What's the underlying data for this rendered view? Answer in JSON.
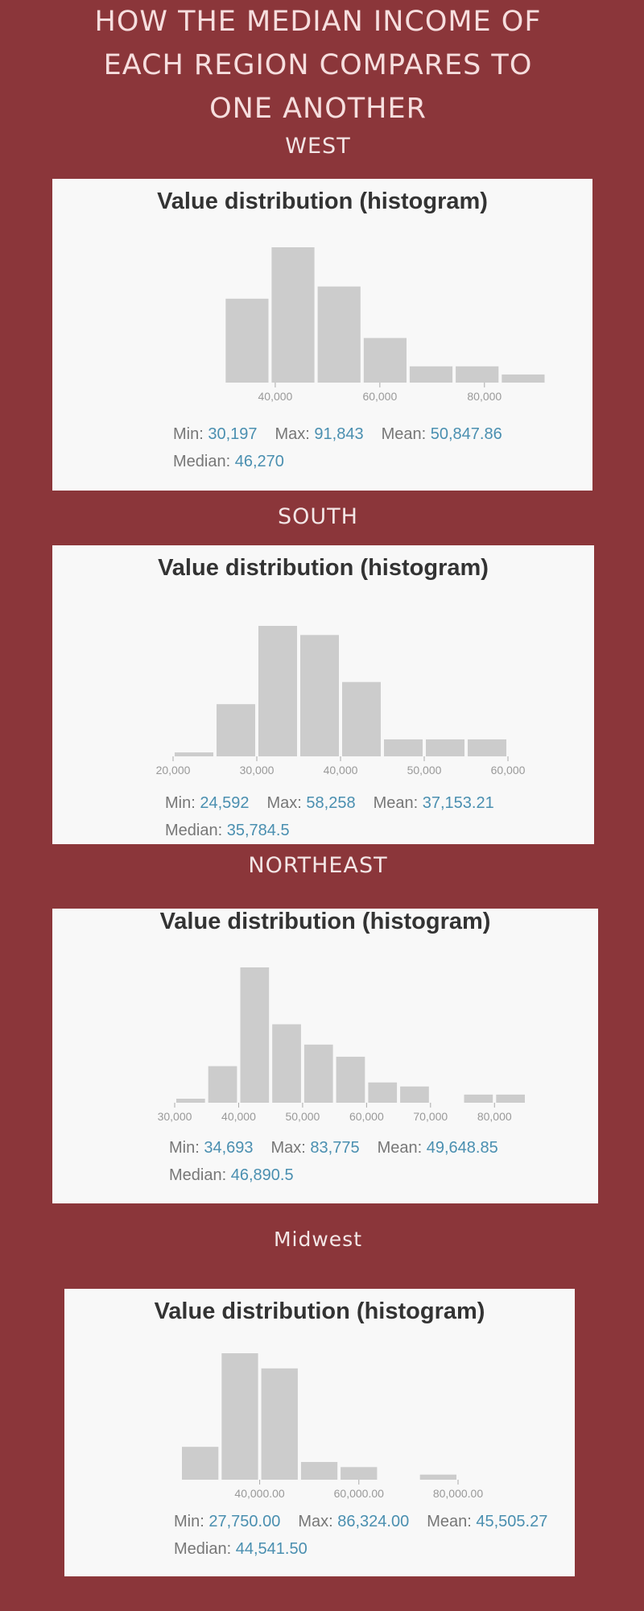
{
  "page_title_lines": [
    "HOW THE MEDIAN INCOME OF",
    "EACH REGION COMPARES TO",
    "ONE ANOTHER"
  ],
  "colors": {
    "background": "#8b363a",
    "card": "#f8f8f8",
    "bar": "#cccccc",
    "value": "#4a8fb0",
    "label": "#777777"
  },
  "stat_labels": {
    "min": "Min:",
    "max": "Max:",
    "mean": "Mean:",
    "median": "Median:"
  },
  "chart_data": [
    {
      "region": "WEST",
      "type": "bar",
      "title": "Value distribution (histogram)",
      "bin_start": 30197,
      "bin_width": 8800,
      "values": [
        0.62,
        1.0,
        0.71,
        0.33,
        0.12,
        0.12,
        0.06
      ],
      "xticks": [
        40000,
        60000,
        80000
      ],
      "xtick_labels": [
        "40,000",
        "60,000",
        "80,000"
      ],
      "stats": {
        "min": "30,197",
        "max": "91,843",
        "mean": "50,847.86",
        "median": "46,270"
      }
    },
    {
      "region": "SOUTH",
      "type": "bar",
      "title": "Value distribution (histogram)",
      "bin_start": 20000,
      "bin_width": 5000,
      "values": [
        0.03,
        0.4,
        1.0,
        0.93,
        0.57,
        0.13,
        0.13,
        0.13
      ],
      "xticks": [
        20000,
        30000,
        40000,
        50000,
        60000
      ],
      "xtick_labels": [
        "20,000",
        "30,000",
        "40,000",
        "50,000",
        "60,000"
      ],
      "stats": {
        "min": "24,592",
        "max": "58,258",
        "mean": "37,153.21",
        "median": "35,784.5"
      }
    },
    {
      "region": "NORTHEAST",
      "type": "bar",
      "title": "Value distribution (histogram)",
      "bin_start": 30000,
      "bin_width": 5000,
      "values": [
        0.03,
        0.27,
        1.0,
        0.58,
        0.43,
        0.34,
        0.15,
        0.12,
        0.0,
        0.06,
        0.06
      ],
      "xticks": [
        30000,
        40000,
        50000,
        60000,
        70000,
        80000
      ],
      "xtick_labels": [
        "30,000",
        "40,000",
        "50,000",
        "60,000",
        "70,000",
        "80,000"
      ],
      "stats": {
        "min": "34,693",
        "max": "83,775",
        "mean": "49,648.85",
        "median": "46,890.5"
      }
    },
    {
      "region": "Midwest",
      "type": "bar",
      "title": "Value distribution (histogram)",
      "bin_start": 24000,
      "bin_width": 8000,
      "values": [
        0.26,
        1.0,
        0.88,
        0.14,
        0.1,
        0.0,
        0.04
      ],
      "xticks": [
        40000,
        60000,
        80000
      ],
      "xtick_labels": [
        "40,000.00",
        "60,000.00",
        "80,000.00"
      ],
      "stats": {
        "min": "27,750.00",
        "max": "86,324.00",
        "mean": "45,505.27",
        "median": "44,541.50"
      }
    }
  ]
}
